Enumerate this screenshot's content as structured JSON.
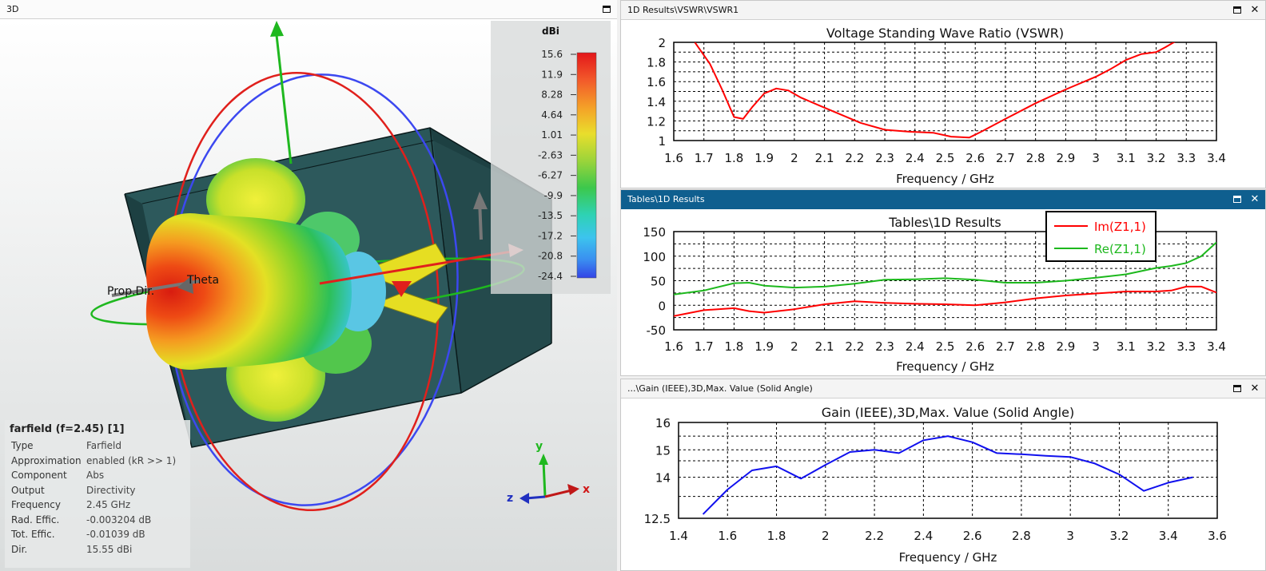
{
  "left_panel": {
    "title": "3D",
    "label_prop_dir": "Prop.Dir.",
    "label_theta": "Theta",
    "axis_x": "x",
    "axis_y": "y",
    "axis_z": "z",
    "colorbar": {
      "unit": "dBi",
      "ticks": [
        "15.6",
        "11.9",
        "8.28",
        "4.64",
        "1.01",
        "-2.63",
        "-6.27",
        "-9.9",
        "-13.5",
        "-17.2",
        "-20.8",
        "-24.4"
      ]
    },
    "info": {
      "title": "farfield (f=2.45) [1]",
      "rows": [
        {
          "key": "Type",
          "value": "Farfield"
        },
        {
          "key": "Approximation",
          "value": "enabled (kR >> 1)"
        },
        {
          "key": "Component",
          "value": "Abs"
        },
        {
          "key": "Output",
          "value": "Directivity"
        },
        {
          "key": "Frequency",
          "value": "2.45 GHz"
        },
        {
          "key": "Rad. Effic.",
          "value": "-0.003204 dB"
        },
        {
          "key": "Tot. Effic.",
          "value": "-0.01039 dB"
        },
        {
          "key": "Dir.",
          "value": "15.55 dBi"
        }
      ]
    }
  },
  "vswr_panel": {
    "title": "1D Results\\VSWR\\VSWR1"
  },
  "tables_panel": {
    "title": "Tables\\1D Results"
  },
  "gain_panel": {
    "title": "...\\Gain (IEEE),3D,Max. Value (Solid Angle)"
  },
  "chart_data": [
    {
      "type": "line",
      "title": "Voltage Standing Wave Ratio (VSWR)",
      "xlabel": "Frequency / GHz",
      "ylabel": "",
      "xlim": [
        1.6,
        3.4
      ],
      "ylim": [
        1,
        2
      ],
      "xticks": [
        "1.6",
        "1.7",
        "1.8",
        "1.9",
        "2",
        "2.1",
        "2.2",
        "2.3",
        "2.4",
        "2.5",
        "2.6",
        "2.7",
        "2.8",
        "2.9",
        "3",
        "3.1",
        "3.2",
        "3.3",
        "3.4"
      ],
      "yticks": [
        "1",
        "1.2",
        "1.4",
        "1.6",
        "1.8",
        "2"
      ],
      "grid": true,
      "series": [
        {
          "color": "#ff0000",
          "x": [
            1.67,
            1.72,
            1.76,
            1.8,
            1.83,
            1.86,
            1.9,
            1.94,
            1.98,
            2.02,
            2.08,
            2.15,
            2.22,
            2.3,
            2.38,
            2.46,
            2.52,
            2.58,
            2.62,
            2.7,
            2.8,
            2.9,
            3.0,
            3.05,
            3.1,
            3.15,
            3.2,
            3.23,
            3.27
          ],
          "y": [
            2.0,
            1.78,
            1.52,
            1.24,
            1.22,
            1.34,
            1.48,
            1.53,
            1.51,
            1.44,
            1.36,
            1.27,
            1.18,
            1.11,
            1.09,
            1.08,
            1.04,
            1.03,
            1.09,
            1.22,
            1.38,
            1.52,
            1.65,
            1.73,
            1.82,
            1.88,
            1.9,
            1.95,
            2.02
          ]
        }
      ]
    },
    {
      "type": "line",
      "title": "Tables\\1D Results",
      "xlabel": "Frequency / GHz",
      "ylabel": "",
      "xlim": [
        1.6,
        3.4
      ],
      "ylim": [
        -50,
        150
      ],
      "xticks": [
        "1.6",
        "1.7",
        "1.8",
        "1.9",
        "2",
        "2.1",
        "2.2",
        "2.3",
        "2.4",
        "2.5",
        "2.6",
        "2.7",
        "2.8",
        "2.9",
        "3",
        "3.1",
        "3.2",
        "3.3",
        "3.4"
      ],
      "yticks": [
        "-50",
        "0",
        "50",
        "100",
        "150"
      ],
      "grid": true,
      "legend_position": "top-right",
      "series": [
        {
          "name": "Im(Z1,1)",
          "color": "#ff0000",
          "x": [
            1.6,
            1.7,
            1.8,
            1.85,
            1.9,
            2.0,
            2.1,
            2.2,
            2.3,
            2.4,
            2.5,
            2.6,
            2.7,
            2.8,
            2.9,
            3.0,
            3.1,
            3.2,
            3.25,
            3.3,
            3.35,
            3.4
          ],
          "y": [
            -22,
            -10,
            -6,
            -12,
            -15,
            -8,
            2,
            8,
            5,
            3,
            2,
            0,
            6,
            14,
            20,
            24,
            28,
            28,
            30,
            38,
            38,
            26
          ]
        },
        {
          "name": "Re(Z1,1)",
          "color": "#1db81d",
          "x": [
            1.6,
            1.7,
            1.8,
            1.85,
            1.9,
            2.0,
            2.1,
            2.2,
            2.3,
            2.4,
            2.5,
            2.6,
            2.7,
            2.8,
            2.9,
            3.0,
            3.1,
            3.2,
            3.25,
            3.3,
            3.35,
            3.4
          ],
          "y": [
            22,
            30,
            45,
            46,
            40,
            36,
            38,
            44,
            52,
            53,
            55,
            52,
            46,
            46,
            50,
            56,
            63,
            76,
            80,
            86,
            100,
            128
          ]
        }
      ]
    },
    {
      "type": "line",
      "title": "Gain (IEEE),3D,Max. Value (Solid Angle)",
      "xlabel": "Frequency / GHz",
      "ylabel": "",
      "xlim": [
        1.4,
        3.6
      ],
      "ylim": [
        12.5,
        16
      ],
      "xticks": [
        "1.4",
        "1.6",
        "1.8",
        "2",
        "2.2",
        "2.4",
        "2.6",
        "2.8",
        "3",
        "3.2",
        "3.4",
        "3.6"
      ],
      "ytick_values": [
        12.5,
        14,
        15,
        16
      ],
      "yticks": [
        "12.5",
        "14",
        "15",
        "16"
      ],
      "grid": true,
      "series": [
        {
          "color": "#1010ee",
          "x": [
            1.5,
            1.6,
            1.7,
            1.8,
            1.9,
            2.0,
            2.1,
            2.2,
            2.3,
            2.4,
            2.5,
            2.6,
            2.7,
            2.8,
            2.9,
            3.0,
            3.1,
            3.2,
            3.3,
            3.4,
            3.5
          ],
          "y": [
            12.65,
            13.55,
            14.25,
            14.4,
            13.95,
            14.45,
            14.92,
            15.0,
            14.88,
            15.35,
            15.5,
            15.28,
            14.88,
            14.84,
            14.78,
            14.74,
            14.5,
            14.1,
            13.5,
            13.8,
            14.0
          ]
        }
      ]
    }
  ]
}
